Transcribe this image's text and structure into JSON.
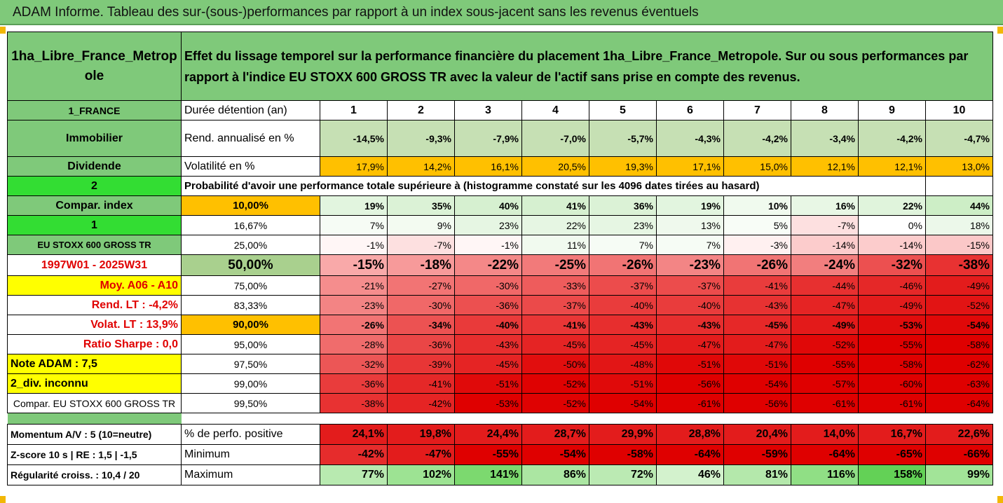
{
  "title": "ADAM Informe. Tableau des sur-(sous-)performances par rapport à un index sous-jacent sans les revenus éventuels",
  "header": {
    "fund_name": "1ha_Libre_France_Metropole",
    "description": "Effet du lissage temporel sur la performance financière du placement 1ha_Libre_France_Metropole. Sur ou sous performances par rapport à l'indice EU STOXX 600 GROSS TR avec la valeur de l'actif sans prise en compte des revenus."
  },
  "side_labels": {
    "country": "1_FRANCE",
    "category": "Immobilier",
    "type": "Dividende",
    "code2": "2",
    "compar_index": "Compar. index",
    "code1": "1",
    "index_name": "EU STOXX 600 GROSS TR",
    "period": "1997W01 - 2025W31",
    "moy": "Moy. A06 - A10",
    "rend_lt": "Rend. LT :   -4,2%",
    "volat_lt": "Volat. LT :   13,9%",
    "sharpe": "Ratio Sharpe :    0,0",
    "note": "Note ADAM : 7,5",
    "div": "2_div. inconnu",
    "compar_bottom": "Compar. EU STOXX 600 GROSS TR",
    "momentum": "Momentum A/V : 5 (10=neutre)",
    "zscore": "Z-score 10 s  |  RE : 1,5  |  -1,5",
    "regularite": "Régularité croiss. : 10,4 / 20"
  },
  "rows": {
    "duree": {
      "label": "Durée détention (an)",
      "values": [
        "1",
        "2",
        "3",
        "4",
        "5",
        "6",
        "7",
        "8",
        "9",
        "10"
      ]
    },
    "rend": {
      "label": "Rend. annualisé en %",
      "values": [
        "-14,5%",
        "-9,3%",
        "-7,9%",
        "-7,0%",
        "-5,7%",
        "-4,3%",
        "-4,2%",
        "-3,4%",
        "-4,2%",
        "-4,7%"
      ]
    },
    "volat": {
      "label": "Volatilité en %",
      "values": [
        "17,9%",
        "14,2%",
        "16,1%",
        "20,5%",
        "19,3%",
        "17,1%",
        "15,0%",
        "12,1%",
        "12,1%",
        "13,0%"
      ]
    },
    "proba_text": "Probabilité d'avoir une performance totale supérieure à (histogramme constaté sur les 4096 dates tirées au hasard)",
    "percentiles": [
      {
        "p": "10,00%",
        "values": [
          "19%",
          "35%",
          "40%",
          "41%",
          "36%",
          "19%",
          "10%",
          "16%",
          "22%",
          "44%"
        ]
      },
      {
        "p": "16,67%",
        "values": [
          "7%",
          "9%",
          "23%",
          "22%",
          "23%",
          "13%",
          "5%",
          "-7%",
          "0%",
          "18%"
        ]
      },
      {
        "p": "25,00%",
        "values": [
          "-1%",
          "-7%",
          "-1%",
          "11%",
          "7%",
          "7%",
          "-3%",
          "-14%",
          "-14%",
          "-15%"
        ]
      },
      {
        "p": "50,00%",
        "values": [
          "-15%",
          "-18%",
          "-22%",
          "-25%",
          "-26%",
          "-23%",
          "-26%",
          "-24%",
          "-32%",
          "-38%"
        ]
      },
      {
        "p": "75,00%",
        "values": [
          "-21%",
          "-27%",
          "-30%",
          "-33%",
          "-37%",
          "-37%",
          "-41%",
          "-44%",
          "-46%",
          "-49%"
        ]
      },
      {
        "p": "83,33%",
        "values": [
          "-23%",
          "-30%",
          "-36%",
          "-37%",
          "-40%",
          "-40%",
          "-43%",
          "-47%",
          "-49%",
          "-52%"
        ]
      },
      {
        "p": "90,00%",
        "values": [
          "-26%",
          "-34%",
          "-40%",
          "-41%",
          "-43%",
          "-43%",
          "-45%",
          "-49%",
          "-53%",
          "-54%"
        ]
      },
      {
        "p": "95,00%",
        "values": [
          "-28%",
          "-36%",
          "-43%",
          "-45%",
          "-45%",
          "-47%",
          "-47%",
          "-52%",
          "-55%",
          "-58%"
        ]
      },
      {
        "p": "97,50%",
        "values": [
          "-32%",
          "-39%",
          "-45%",
          "-50%",
          "-48%",
          "-51%",
          "-51%",
          "-55%",
          "-58%",
          "-62%"
        ]
      },
      {
        "p": "99,00%",
        "values": [
          "-36%",
          "-41%",
          "-51%",
          "-52%",
          "-51%",
          "-56%",
          "-54%",
          "-57%",
          "-60%",
          "-63%"
        ]
      },
      {
        "p": "99,50%",
        "values": [
          "-38%",
          "-42%",
          "-53%",
          "-52%",
          "-54%",
          "-61%",
          "-56%",
          "-61%",
          "-61%",
          "-64%"
        ]
      }
    ],
    "positive": {
      "label": "% de perfo. positive",
      "values": [
        "24,1%",
        "19,8%",
        "24,4%",
        "28,7%",
        "29,9%",
        "28,8%",
        "20,4%",
        "14,0%",
        "16,7%",
        "22,6%"
      ]
    },
    "minimum": {
      "label": "Minimum",
      "values": [
        "-42%",
        "-47%",
        "-55%",
        "-54%",
        "-58%",
        "-64%",
        "-59%",
        "-64%",
        "-65%",
        "-66%"
      ]
    },
    "maximum": {
      "label": "Maximum",
      "values": [
        "77%",
        "102%",
        "141%",
        "86%",
        "72%",
        "46%",
        "81%",
        "116%",
        "158%",
        "99%"
      ]
    }
  },
  "colors": {
    "header_green": "#7fc97a",
    "bright_green": "#33dd33",
    "yellow": "#ffff00",
    "orange": "#ffc000",
    "label_red": "#e00000"
  }
}
